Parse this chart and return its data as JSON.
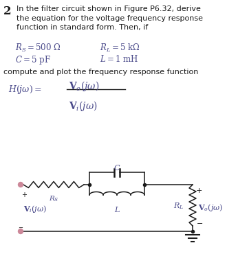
{
  "bg_color": "#ffffff",
  "text_color": "#1a1a1a",
  "italic_color": "#4a4a8a",
  "circuit_color": "#1a1a1a",
  "title_num": "2",
  "title_text": "In the filter circuit shown in Figure P6.32, derive\nthe equation for the voltage frequency response\nfunction in standard form. Then, if",
  "param_r1": "$R_S = 500\\ \\Omega$",
  "param_r2": "$R_L = 5\\ \\mathrm{k}\\Omega$",
  "param_c": "$C = 5\\ \\mathrm{pF}$",
  "param_l": "$L = 1\\ \\mathrm{mH}$",
  "compute_text": "compute and plot the frequency response function",
  "figw": 3.46,
  "figh": 4.06,
  "dpi": 100
}
